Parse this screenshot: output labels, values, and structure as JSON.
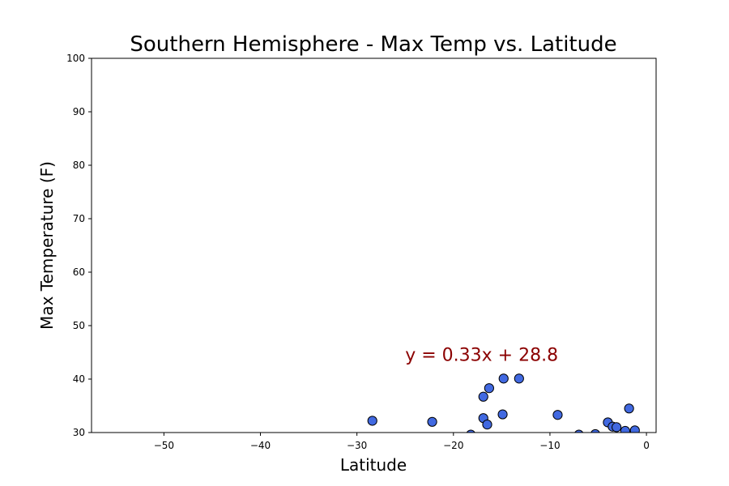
{
  "chart_data": {
    "type": "scatter",
    "title": "Southern Hemisphere - Max Temp vs. Latitude",
    "xlabel": "Latitude",
    "ylabel": "Max Temperature (F)",
    "xlim": [
      -57.5,
      1
    ],
    "ylim": [
      30,
      100
    ],
    "xticks": [
      -50,
      -40,
      -30,
      -20,
      -10,
      0
    ],
    "xtick_labels": [
      "−50",
      "−40",
      "−30",
      "−20",
      "−10",
      "0"
    ],
    "yticks": [
      30,
      40,
      50,
      60,
      70,
      80,
      90,
      100
    ],
    "ytick_labels": [
      "30",
      "40",
      "50",
      "60",
      "70",
      "80",
      "90",
      "100"
    ],
    "grid": false,
    "marker_color": "#4169e1",
    "marker_edge_color": "#000000",
    "annotation": {
      "text": "y = 0.33x + 28.8",
      "color": "#8b0000",
      "x": -25,
      "y": 43.4
    },
    "points": [
      {
        "x": -28.4,
        "y": 32.2
      },
      {
        "x": -22.2,
        "y": 32.0
      },
      {
        "x": -18.2,
        "y": 29.6
      },
      {
        "x": -16.9,
        "y": 36.7
      },
      {
        "x": -16.9,
        "y": 32.7
      },
      {
        "x": -16.5,
        "y": 31.5
      },
      {
        "x": -16.3,
        "y": 38.3
      },
      {
        "x": -14.9,
        "y": 33.4
      },
      {
        "x": -14.8,
        "y": 40.1
      },
      {
        "x": -13.2,
        "y": 40.1
      },
      {
        "x": -9.2,
        "y": 33.3
      },
      {
        "x": -7.0,
        "y": 29.6
      },
      {
        "x": -5.3,
        "y": 29.7
      },
      {
        "x": -4.0,
        "y": 31.9
      },
      {
        "x": -3.5,
        "y": 31.1
      },
      {
        "x": -3.1,
        "y": 31.0
      },
      {
        "x": -2.2,
        "y": 30.3
      },
      {
        "x": -1.8,
        "y": 34.5
      },
      {
        "x": -1.2,
        "y": 30.4
      }
    ]
  }
}
